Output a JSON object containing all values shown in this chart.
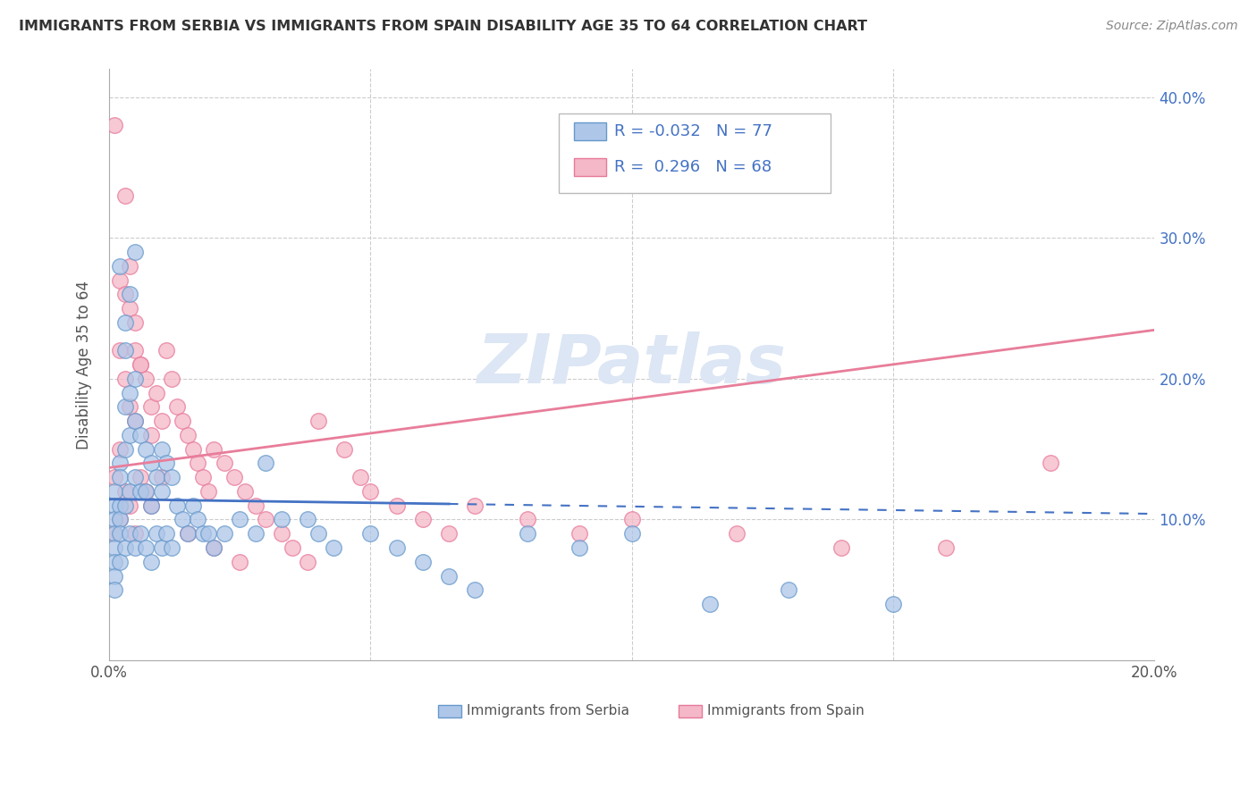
{
  "title": "IMMIGRANTS FROM SERBIA VS IMMIGRANTS FROM SPAIN DISABILITY AGE 35 TO 64 CORRELATION CHART",
  "source": "Source: ZipAtlas.com",
  "ylabel": "Disability Age 35 to 64",
  "xlim": [
    0.0,
    0.2
  ],
  "ylim": [
    0.0,
    0.42
  ],
  "serbia_color": "#aec6e8",
  "serbia_edge_color": "#6699cc",
  "spain_color": "#f4b8c8",
  "spain_edge_color": "#e8799a",
  "serbia_line_color": "#4472c4",
  "spain_line_color": "#e87d9a",
  "serbia_R": -0.032,
  "serbia_N": 77,
  "spain_R": 0.296,
  "spain_N": 68,
  "serbia_label": "Immigrants from Serbia",
  "spain_label": "Immigrants from Spain",
  "watermark": "ZIPatlas",
  "grid_color": "#cccccc",
  "serbia_scatter_x": [
    0.001,
    0.001,
    0.001,
    0.001,
    0.001,
    0.001,
    0.001,
    0.001,
    0.002,
    0.002,
    0.002,
    0.002,
    0.002,
    0.002,
    0.003,
    0.003,
    0.003,
    0.003,
    0.003,
    0.004,
    0.004,
    0.004,
    0.004,
    0.005,
    0.005,
    0.005,
    0.005,
    0.006,
    0.006,
    0.006,
    0.007,
    0.007,
    0.007,
    0.008,
    0.008,
    0.008,
    0.009,
    0.009,
    0.01,
    0.01,
    0.01,
    0.011,
    0.011,
    0.012,
    0.012,
    0.013,
    0.014,
    0.015,
    0.016,
    0.017,
    0.018,
    0.019,
    0.02,
    0.022,
    0.025,
    0.028,
    0.03,
    0.033,
    0.038,
    0.04,
    0.043,
    0.05,
    0.055,
    0.06,
    0.065,
    0.07,
    0.08,
    0.09,
    0.1,
    0.115,
    0.13,
    0.15,
    0.002,
    0.003,
    0.004,
    0.005
  ],
  "serbia_scatter_y": [
    0.12,
    0.11,
    0.1,
    0.09,
    0.08,
    0.07,
    0.06,
    0.05,
    0.14,
    0.13,
    0.11,
    0.1,
    0.09,
    0.07,
    0.22,
    0.18,
    0.15,
    0.11,
    0.08,
    0.19,
    0.16,
    0.12,
    0.09,
    0.2,
    0.17,
    0.13,
    0.08,
    0.16,
    0.12,
    0.09,
    0.15,
    0.12,
    0.08,
    0.14,
    0.11,
    0.07,
    0.13,
    0.09,
    0.15,
    0.12,
    0.08,
    0.14,
    0.09,
    0.13,
    0.08,
    0.11,
    0.1,
    0.09,
    0.11,
    0.1,
    0.09,
    0.09,
    0.08,
    0.09,
    0.1,
    0.09,
    0.14,
    0.1,
    0.1,
    0.09,
    0.08,
    0.09,
    0.08,
    0.07,
    0.06,
    0.05,
    0.09,
    0.08,
    0.09,
    0.04,
    0.05,
    0.04,
    0.28,
    0.24,
    0.26,
    0.29
  ],
  "spain_scatter_x": [
    0.001,
    0.001,
    0.001,
    0.002,
    0.002,
    0.002,
    0.002,
    0.003,
    0.003,
    0.003,
    0.004,
    0.004,
    0.004,
    0.005,
    0.005,
    0.005,
    0.006,
    0.006,
    0.007,
    0.007,
    0.008,
    0.008,
    0.009,
    0.01,
    0.011,
    0.012,
    0.013,
    0.014,
    0.015,
    0.016,
    0.017,
    0.018,
    0.019,
    0.02,
    0.022,
    0.024,
    0.026,
    0.028,
    0.03,
    0.033,
    0.035,
    0.038,
    0.04,
    0.045,
    0.048,
    0.05,
    0.055,
    0.06,
    0.065,
    0.07,
    0.08,
    0.09,
    0.1,
    0.12,
    0.14,
    0.16,
    0.18,
    0.003,
    0.004,
    0.005,
    0.006,
    0.008,
    0.01,
    0.015,
    0.02,
    0.025
  ],
  "spain_scatter_y": [
    0.38,
    0.13,
    0.09,
    0.27,
    0.22,
    0.15,
    0.1,
    0.26,
    0.2,
    0.12,
    0.25,
    0.18,
    0.11,
    0.22,
    0.17,
    0.09,
    0.21,
    0.13,
    0.2,
    0.12,
    0.18,
    0.11,
    0.19,
    0.17,
    0.22,
    0.2,
    0.18,
    0.17,
    0.16,
    0.15,
    0.14,
    0.13,
    0.12,
    0.15,
    0.14,
    0.13,
    0.12,
    0.11,
    0.1,
    0.09,
    0.08,
    0.07,
    0.17,
    0.15,
    0.13,
    0.12,
    0.11,
    0.1,
    0.09,
    0.11,
    0.1,
    0.09,
    0.1,
    0.09,
    0.08,
    0.08,
    0.14,
    0.33,
    0.28,
    0.24,
    0.21,
    0.16,
    0.13,
    0.09,
    0.08,
    0.07
  ]
}
